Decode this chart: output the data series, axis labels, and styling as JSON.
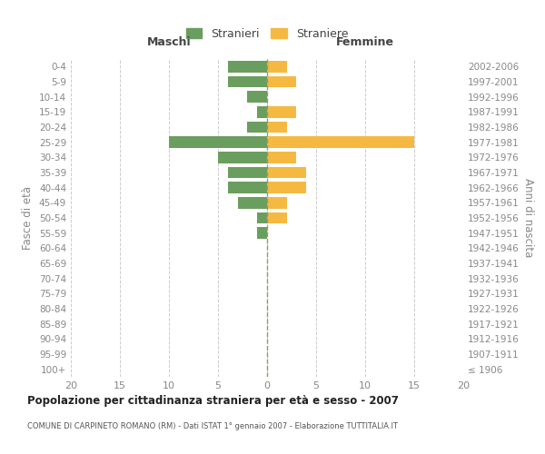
{
  "age_groups": [
    "100+",
    "95-99",
    "90-94",
    "85-89",
    "80-84",
    "75-79",
    "70-74",
    "65-69",
    "60-64",
    "55-59",
    "50-54",
    "45-49",
    "40-44",
    "35-39",
    "30-34",
    "25-29",
    "20-24",
    "15-19",
    "10-14",
    "5-9",
    "0-4"
  ],
  "birth_years": [
    "≤ 1906",
    "1907-1911",
    "1912-1916",
    "1917-1921",
    "1922-1926",
    "1927-1931",
    "1932-1936",
    "1937-1941",
    "1942-1946",
    "1947-1951",
    "1952-1956",
    "1957-1961",
    "1962-1966",
    "1967-1971",
    "1972-1976",
    "1977-1981",
    "1982-1986",
    "1987-1991",
    "1992-1996",
    "1997-2001",
    "2002-2006"
  ],
  "males": [
    0,
    0,
    0,
    0,
    0,
    0,
    0,
    0,
    0,
    1,
    1,
    3,
    4,
    4,
    5,
    10,
    2,
    1,
    2,
    4,
    4
  ],
  "females": [
    0,
    0,
    0,
    0,
    0,
    0,
    0,
    0,
    0,
    0,
    2,
    2,
    4,
    4,
    3,
    15,
    2,
    3,
    0,
    3,
    2
  ],
  "male_color": "#6a9e5e",
  "female_color": "#f5b942",
  "xlim": 20,
  "title": "Popolazione per cittadinanza straniera per età e sesso - 2007",
  "subtitle": "COMUNE DI CARPINETO ROMANO (RM) - Dati ISTAT 1° gennaio 2007 - Elaborazione TUTTITALIA.IT",
  "ylabel_left": "Fasce di età",
  "ylabel_right": "Anni di nascita",
  "legend_male": "Stranieri",
  "legend_female": "Straniere",
  "header_left": "Maschi",
  "header_right": "Femmine",
  "bg_color": "#ffffff",
  "grid_color": "#cccccc",
  "tick_label_color": "#888888"
}
